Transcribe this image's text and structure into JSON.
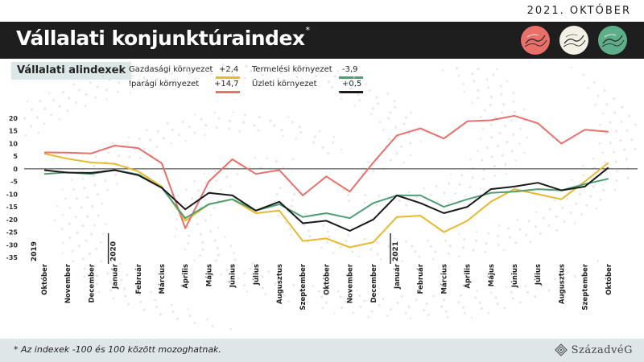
{
  "header": {
    "date": "2021. OKTÓBER",
    "title": "Vállalati konjunktúraindex",
    "title_mark": "*",
    "subtitle": "Vállalati alindexek",
    "icons": [
      "red-lined-circle-icon",
      "white-lined-circle-icon",
      "green-lined-circle-icon"
    ]
  },
  "legend": [
    {
      "label": "Gazdasági környezet",
      "value": "+2,4",
      "color": "#e8b830"
    },
    {
      "label": "Iparági környezet",
      "value": "+14,7",
      "color": "#e8706a"
    },
    {
      "label": "Termelési környezet",
      "value": "-3,9",
      "color": "#4e9e74"
    },
    {
      "label": "Üzleti környezet",
      "value": "+0,5",
      "color": "#1a1a1a"
    }
  ],
  "footer": {
    "note": "* Az indexek -100 és 100 között mozoghatnak.",
    "brand": "SzázadvéG"
  },
  "chart_data": {
    "type": "line",
    "categories": [
      "Október",
      "November",
      "December",
      "Január",
      "Február",
      "Március",
      "Április",
      "Május",
      "Június",
      "Július",
      "Augusztus",
      "Szeptember",
      "Október",
      "November",
      "December",
      "Január",
      "Február",
      "Március",
      "Április",
      "Május",
      "Június",
      "Július",
      "Augusztus",
      "Szeptember",
      "Október"
    ],
    "year_markers": [
      {
        "label": "2019",
        "index": 0
      },
      {
        "label": "2020",
        "index": 3
      },
      {
        "label": "2021",
        "index": 15
      }
    ],
    "ylim": [
      -35,
      20
    ],
    "yticks": [
      20,
      15,
      10,
      5,
      0,
      -5,
      -10,
      -15,
      -20,
      -25,
      -30,
      -35
    ],
    "series": [
      {
        "name": "Gazdasági környezet",
        "color": "#e8b830",
        "values": [
          6,
          4,
          2.5,
          2,
          -1,
          -7,
          -20.5,
          -14,
          -12,
          -17.5,
          -16.5,
          -28.5,
          -27.5,
          -31,
          -29,
          -19,
          -18.5,
          -25,
          -20.5,
          -13,
          -8,
          -10,
          -12,
          -5,
          2.4
        ]
      },
      {
        "name": "Iparági környezet",
        "color": "#e8706a",
        "values": [
          6.5,
          6.4,
          6.1,
          9.2,
          8.2,
          2.2,
          -23.5,
          -5,
          3.8,
          -2,
          -0.5,
          -10.5,
          -3,
          -9,
          2.5,
          13.2,
          16,
          12,
          18.8,
          19.2,
          21,
          18,
          10,
          15.5,
          14.7
        ]
      },
      {
        "name": "Termelési környezet",
        "color": "#4e9e74",
        "values": [
          -2,
          -1.4,
          -2,
          -0.5,
          -2.2,
          -7.5,
          -19.5,
          -14,
          -12,
          -16.5,
          -14,
          -19,
          -17.5,
          -19.5,
          -13.5,
          -10.5,
          -10.5,
          -15,
          -12,
          -9.5,
          -9,
          -8,
          -8.5,
          -6,
          -3.9
        ]
      },
      {
        "name": "Üzleti környezet",
        "color": "#1a1a1a",
        "values": [
          -0.5,
          -1.5,
          -1.6,
          -0.5,
          -2.5,
          -7.5,
          -16,
          -9.5,
          -10.5,
          -16.5,
          -13,
          -21.5,
          -20.5,
          -24.5,
          -20,
          -10.5,
          -13.5,
          -17.5,
          -15,
          -8,
          -7,
          -5.5,
          -8.5,
          -7,
          0.5
        ]
      }
    ],
    "grid": false,
    "zero_line": true
  }
}
